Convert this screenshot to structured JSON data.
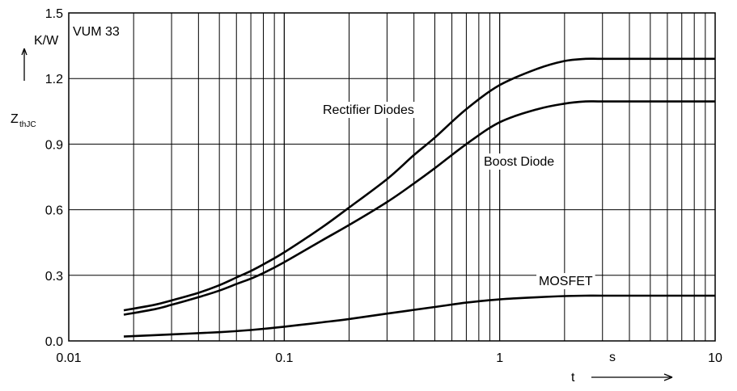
{
  "chart_data": {
    "type": "line",
    "title": "VUM 33",
    "xscale": "log",
    "xlim": [
      0.01,
      10
    ],
    "ylim": [
      0.0,
      1.5
    ],
    "x_ticks": [
      {
        "value": 0.01,
        "label": "0.01"
      },
      {
        "value": 0.1,
        "label": "0.1"
      },
      {
        "value": 1,
        "label": "1"
      },
      {
        "value": 10,
        "label": "10"
      }
    ],
    "y_ticks": [
      {
        "value": 0.0,
        "label": "0.0"
      },
      {
        "value": 0.3,
        "label": "0.3"
      },
      {
        "value": 0.6,
        "label": "0.6"
      },
      {
        "value": 0.9,
        "label": "0.9"
      },
      {
        "value": 1.2,
        "label": "1.2"
      },
      {
        "value": 1.5,
        "label": "1.5"
      }
    ],
    "xlabel": "t",
    "xunit": "s",
    "ylabel_main": "Z",
    "ylabel_sub": "thJC",
    "yunit": "K/W",
    "grid": true,
    "series": [
      {
        "name": "Rectifier Diodes",
        "x": [
          0.018,
          0.025,
          0.03,
          0.04,
          0.05,
          0.06,
          0.07,
          0.08,
          0.1,
          0.15,
          0.2,
          0.3,
          0.4,
          0.5,
          0.7,
          1.0,
          1.5,
          2.0,
          2.5,
          3.0,
          5.0,
          10.0
        ],
        "y": [
          0.14,
          0.165,
          0.185,
          0.22,
          0.255,
          0.29,
          0.32,
          0.35,
          0.405,
          0.52,
          0.61,
          0.74,
          0.85,
          0.93,
          1.06,
          1.17,
          1.245,
          1.28,
          1.29,
          1.29,
          1.29,
          1.29
        ]
      },
      {
        "name": "Boost Diode",
        "x": [
          0.018,
          0.025,
          0.03,
          0.04,
          0.05,
          0.06,
          0.07,
          0.08,
          0.1,
          0.15,
          0.2,
          0.3,
          0.4,
          0.5,
          0.7,
          1.0,
          1.5,
          2.0,
          2.5,
          3.0,
          5.0,
          10.0
        ],
        "y": [
          0.12,
          0.145,
          0.165,
          0.2,
          0.23,
          0.26,
          0.285,
          0.31,
          0.36,
          0.46,
          0.53,
          0.635,
          0.72,
          0.79,
          0.9,
          1.0,
          1.06,
          1.085,
          1.095,
          1.095,
          1.095,
          1.095
        ]
      },
      {
        "name": "MOSFET",
        "x": [
          0.018,
          0.03,
          0.05,
          0.07,
          0.1,
          0.15,
          0.2,
          0.3,
          0.5,
          0.7,
          1.0,
          1.5,
          2.0,
          2.5,
          3.0,
          5.0,
          10.0
        ],
        "y": [
          0.02,
          0.03,
          0.04,
          0.05,
          0.065,
          0.085,
          0.1,
          0.125,
          0.155,
          0.175,
          0.19,
          0.2,
          0.205,
          0.207,
          0.207,
          0.207,
          0.207
        ]
      }
    ]
  }
}
